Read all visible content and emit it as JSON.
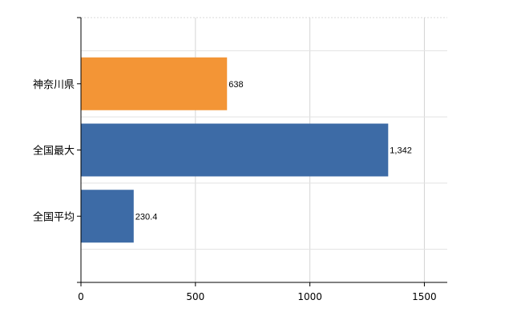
{
  "chart_data": {
    "type": "bar",
    "orientation": "horizontal",
    "categories": [
      "神奈川県",
      "全国最大",
      "全国平均"
    ],
    "values": [
      638,
      1342,
      230.4
    ],
    "data_labels": [
      "638",
      "1,342",
      "230.4"
    ],
    "colors": [
      "#F39536",
      "#3D6BA6",
      "#3D6BA6"
    ],
    "xlim": [
      0,
      1600
    ],
    "xticks": [
      0,
      500,
      1000,
      1500
    ],
    "grid": true,
    "legend": "none"
  }
}
